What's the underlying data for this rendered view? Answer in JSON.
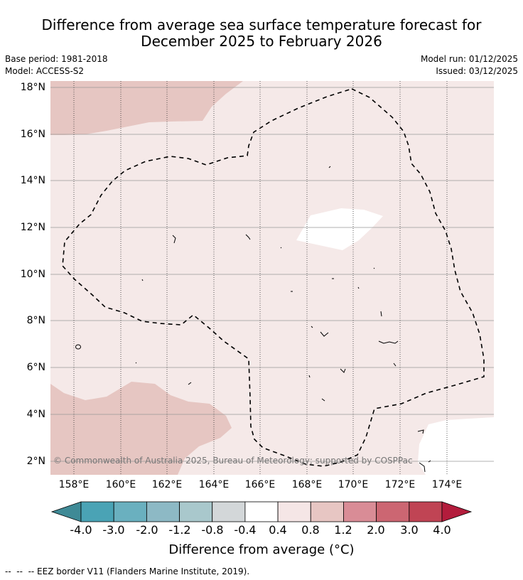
{
  "title_line1": "Difference from average sea surface temperature forecast for",
  "title_line2": "December 2025 to February 2026",
  "base_period": "Base period: 1981-2018",
  "model": "Model: ACCESS-S2",
  "model_run": "Model run: 01/12/2025",
  "issued": "Issued: 03/12/2025",
  "copyright": "© Commonwealth of Australia 2025, Bureau of Meteorology; supported by COSPPac",
  "lat_ticks": [
    "18°N",
    "16°N",
    "14°N",
    "12°N",
    "10°N",
    "8°N",
    "6°N",
    "4°N",
    "2°N"
  ],
  "lon_ticks": [
    "158°E",
    "160°E",
    "162°E",
    "164°E",
    "166°E",
    "168°E",
    "170°E",
    "172°E",
    "174°E"
  ],
  "colorbar": {
    "labels": [
      "-4.0",
      "-3.0",
      "-2.0",
      "-1.2",
      "-0.8",
      "-0.4",
      "0.4",
      "0.8",
      "1.2",
      "2.0",
      "3.0",
      "4.0"
    ],
    "colors": [
      "#3f8a96",
      "#4aa3b5",
      "#6ab0bf",
      "#8db9c5",
      "#a9c8cc",
      "#d3d7d9",
      "#ffffff",
      "#f5e6e6",
      "#e7c6c3",
      "#d98c96",
      "#cc6672",
      "#c04454",
      "#b31c3c"
    ],
    "title": "Difference from average ($^\\circ$C)",
    "title_display": "Difference from average (°C)"
  },
  "legend_note": "--  --  -- EEZ border V11 (Flanders Marine Institute, 2019).",
  "colors": {
    "background_anomaly": "#f5e9e8",
    "warm_anomaly": "#e6c6c2",
    "neutral": "#ffffff",
    "grid": "#999999"
  }
}
